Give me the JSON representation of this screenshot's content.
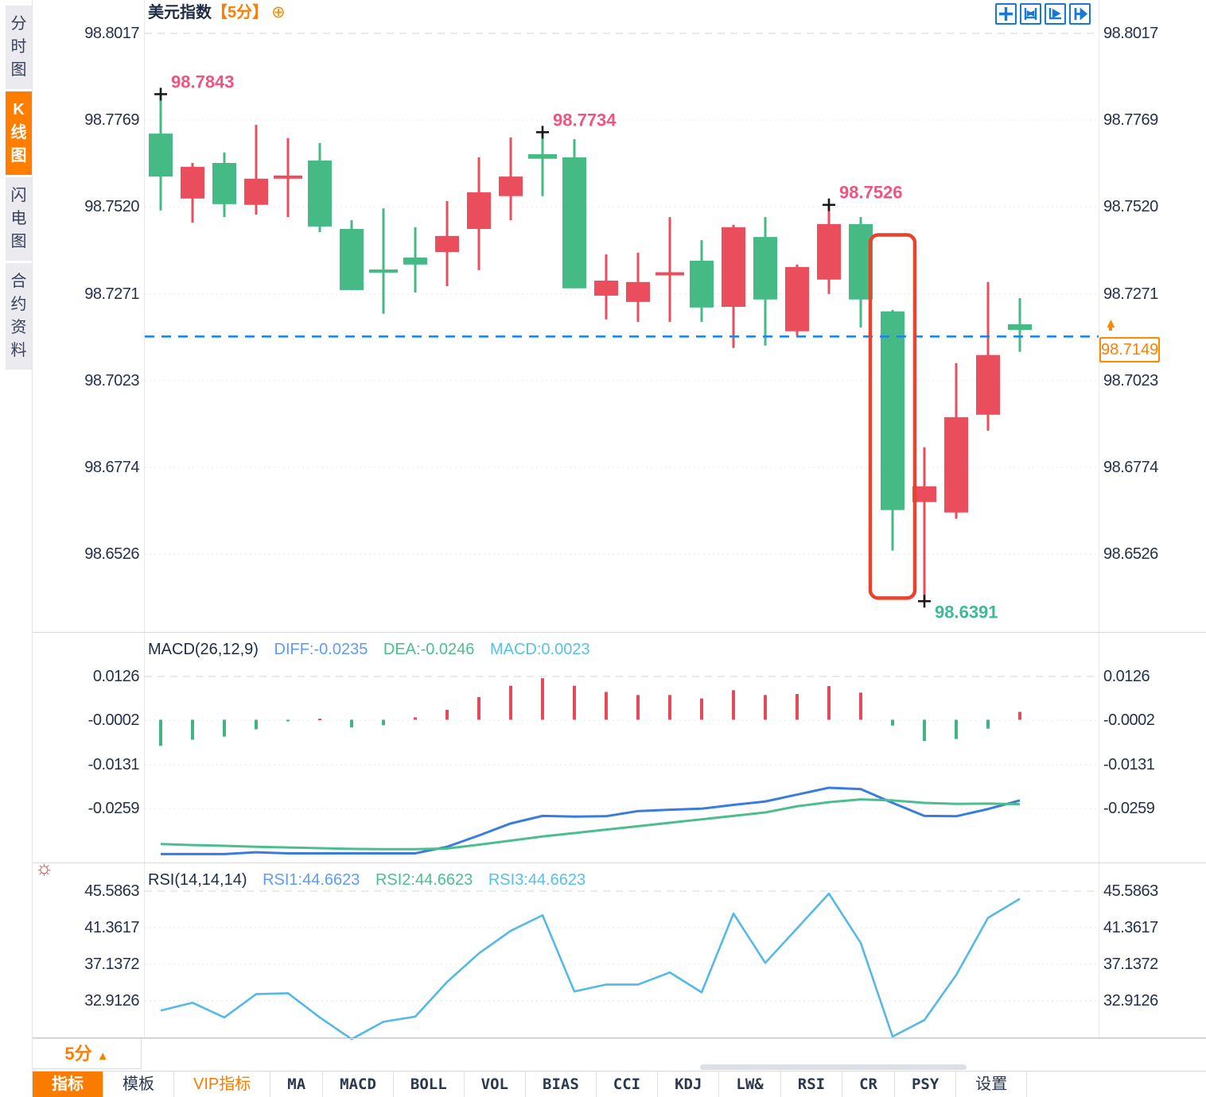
{
  "colors": {
    "up_red": "#EA4D5C",
    "down_green": "#45BA85",
    "accent_orange": "#FF7E00",
    "price_line_blue": "#1E86E8",
    "annotation_pink": "#F2537F",
    "annotation_teal": "#3FBA96",
    "diff_blue": "#3A7BE0",
    "dea_green": "#4CBD8E",
    "rsi_line_blue": "#54B9E6",
    "highlight_red": "#E8432C",
    "toolbar_icon_blue": "#1778D8"
  },
  "sidebar": {
    "items": [
      {
        "label": "分时图",
        "active": false
      },
      {
        "label": "K线图",
        "active": true
      },
      {
        "label": "闪电图",
        "active": false
      },
      {
        "label": "合约资料",
        "active": false
      }
    ]
  },
  "header": {
    "title": "美元指数",
    "period_tag": "【5分】",
    "add_icon": "⊕"
  },
  "toolbar": {
    "icons": [
      "crosshair-icon",
      "fit-range-icon",
      "scale-axis-icon",
      "goto-latest-icon"
    ]
  },
  "current_price": {
    "label": "98.7149",
    "value": 98.7149
  },
  "period_selector": {
    "label": "5分",
    "arrow": "▲"
  },
  "hot_icon": "☼",
  "bottom_tabs": [
    {
      "label": "指标",
      "style": "active"
    },
    {
      "label": "模板",
      "style": "cjk"
    },
    {
      "label": "VIP指标",
      "style": "vip"
    },
    {
      "label": "MA",
      "style": "mono"
    },
    {
      "label": "MACD",
      "style": "mono"
    },
    {
      "label": "BOLL",
      "style": "mono"
    },
    {
      "label": "VOL",
      "style": "mono"
    },
    {
      "label": "BIAS",
      "style": "mono"
    },
    {
      "label": "CCI",
      "style": "mono"
    },
    {
      "label": "KDJ",
      "style": "mono"
    },
    {
      "label": "LW&",
      "style": "mono"
    },
    {
      "label": "RSI",
      "style": "mono"
    },
    {
      "label": "CR",
      "style": "mono"
    },
    {
      "label": "PSY",
      "style": "mono"
    },
    {
      "label": "设置",
      "style": "cjk"
    }
  ],
  "chart_data": [
    {
      "type": "candlestick",
      "title": "美元指数",
      "period": "5分",
      "legend_position": "none",
      "grid": true,
      "ylim": [
        98.6391,
        98.8017
      ],
      "y_ticks": [
        98.8017,
        98.7769,
        98.752,
        98.7271,
        98.7023,
        98.6774,
        98.6526
      ],
      "y_tick_labels": [
        "98.8017",
        "98.7769",
        "98.7520",
        "98.7271",
        "98.7023",
        "98.6774",
        "98.6526"
      ],
      "up_color_meaning": "red=rise, green=fall (Chinese convention)",
      "candles_ohlc": [
        [
          98.773,
          98.7843,
          98.751,
          98.7607
        ],
        [
          98.7544,
          98.7646,
          98.7475,
          98.7635
        ],
        [
          98.7646,
          98.7676,
          98.7491,
          98.7528
        ],
        [
          98.7526,
          98.7755,
          98.7498,
          98.7601
        ],
        [
          98.7606,
          98.7717,
          98.7491,
          98.761
        ],
        [
          98.7653,
          98.7703,
          98.7448,
          98.7464
        ],
        [
          98.7457,
          98.7482,
          98.7282,
          98.7282
        ],
        [
          98.7341,
          98.7516,
          98.7214,
          98.7337
        ],
        [
          98.7375,
          98.7462,
          98.7275,
          98.7355
        ],
        [
          98.7391,
          98.7537,
          98.7293,
          98.7437
        ],
        [
          98.7457,
          98.7662,
          98.7339,
          98.7562
        ],
        [
          98.7551,
          98.7719,
          98.7482,
          98.7607
        ],
        [
          98.7671,
          98.7734,
          98.7551,
          98.7658
        ],
        [
          98.7662,
          98.7714,
          98.7287,
          98.7287
        ],
        [
          98.7266,
          98.7384,
          98.7198,
          98.7309
        ],
        [
          98.7248,
          98.7389,
          98.7191,
          98.7305
        ],
        [
          98.7329,
          98.7491,
          98.7191,
          98.7333
        ],
        [
          98.7366,
          98.7425,
          98.7191,
          98.7232
        ],
        [
          98.7234,
          98.7469,
          98.7116,
          98.7462
        ],
        [
          98.7434,
          98.7491,
          98.7123,
          98.7255
        ],
        [
          98.7164,
          98.7355,
          98.7152,
          98.7348
        ],
        [
          98.7312,
          98.7526,
          98.7271,
          98.7471
        ],
        [
          98.7471,
          98.7491,
          98.7175,
          98.7255
        ],
        [
          98.7221,
          98.7225,
          98.6536,
          98.6652
        ],
        [
          98.6675,
          98.6832,
          98.6391,
          98.672
        ],
        [
          98.6645,
          98.7073,
          98.6627,
          98.6918
        ],
        [
          98.6925,
          98.7305,
          98.6879,
          98.7096
        ],
        [
          98.7184,
          98.7259,
          98.7105,
          98.7168
        ]
      ],
      "annotations": [
        {
          "text": "98.7843",
          "candle": 0,
          "at": "high",
          "color": "#F2537F"
        },
        {
          "text": "98.7734",
          "candle": 12,
          "at": "high",
          "color": "#F2537F"
        },
        {
          "text": "98.7526",
          "candle": 21,
          "at": "high",
          "color": "#F2537F"
        },
        {
          "text": "98.6391",
          "candle": 24,
          "at": "low",
          "color": "#3FBA96"
        }
      ],
      "highlight_box": {
        "candle": 23,
        "price_top": 98.744,
        "price_bottom": 98.64,
        "color": "#E8432C"
      },
      "price_line": {
        "value": 98.7149,
        "label": "98.7149",
        "style": "dashed",
        "color": "#1E86E8"
      }
    },
    {
      "type": "bar",
      "name": "MACD(26,12,9)",
      "labels": {
        "diff": "DIFF:-0.0235",
        "dea": "DEA:-0.0246",
        "macd": "MACD:0.0023"
      },
      "y_ticks": [
        0.0126,
        -0.0002,
        -0.0131,
        -0.0259
      ],
      "y_tick_labels": [
        "0.0126",
        "-0.0002",
        "-0.0131",
        "-0.0259"
      ],
      "hist": [
        -0.0076,
        -0.0058,
        -0.0049,
        -0.0028,
        -0.0004,
        0.0003,
        -0.0022,
        -0.0016,
        0.0007,
        0.0029,
        0.0066,
        0.0099,
        0.0121,
        0.0099,
        0.0081,
        0.0072,
        0.0072,
        0.0062,
        0.0086,
        0.0072,
        0.0075,
        0.0098,
        0.0079,
        -0.0017,
        -0.0062,
        -0.0056,
        -0.0026,
        0.0023
      ],
      "series": [
        {
          "name": "DIFF",
          "color": "#3A7BE0",
          "values": [
            -0.0391,
            -0.0391,
            -0.0391,
            -0.0386,
            -0.0389,
            -0.0389,
            -0.0389,
            -0.0389,
            -0.0389,
            -0.037,
            -0.0337,
            -0.0302,
            -0.028,
            -0.0282,
            -0.0281,
            -0.0266,
            -0.0262,
            -0.0259,
            -0.0248,
            -0.0238,
            -0.0218,
            -0.0198,
            -0.0202,
            -0.0242,
            -0.028,
            -0.0281,
            -0.026,
            -0.0235
          ]
        },
        {
          "name": "DEA",
          "color": "#4CBD8E",
          "values": [
            -0.0362,
            -0.0365,
            -0.0367,
            -0.037,
            -0.0372,
            -0.0374,
            -0.0376,
            -0.0377,
            -0.0377,
            -0.0375,
            -0.0364,
            -0.0352,
            -0.034,
            -0.033,
            -0.032,
            -0.031,
            -0.03,
            -0.029,
            -0.028,
            -0.027,
            -0.0252,
            -0.024,
            -0.0232,
            -0.0235,
            -0.0242,
            -0.0245,
            -0.0244,
            -0.0246
          ]
        }
      ]
    },
    {
      "type": "line",
      "name": "RSI(14,14,14)",
      "labels": {
        "rsi1": "RSI1:44.6623",
        "rsi2": "RSI2:44.6623",
        "rsi3": "RSI3:44.6623"
      },
      "y_ticks": [
        45.5863,
        41.3617,
        37.1372,
        32.9126
      ],
      "y_tick_labels": [
        "45.5863",
        "41.3617",
        "37.1372",
        "32.9126"
      ],
      "values": [
        31.8,
        32.7,
        31.0,
        33.7,
        33.8,
        31.0,
        28.5,
        30.5,
        31.1,
        35.1,
        38.4,
        41.0,
        42.8,
        34.0,
        34.8,
        34.8,
        36.2,
        33.9,
        43.0,
        37.3,
        41.3,
        45.3,
        39.6,
        28.8,
        30.7,
        35.9,
        42.5,
        44.7
      ]
    }
  ]
}
